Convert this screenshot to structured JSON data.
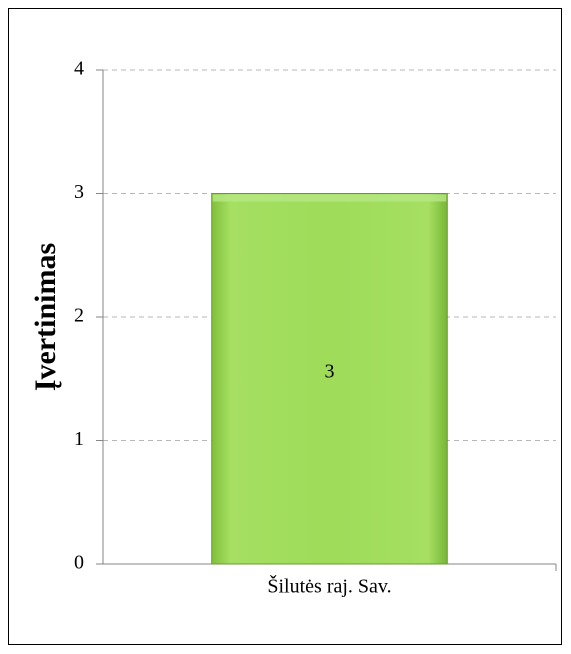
{
  "chart_data": {
    "type": "bar",
    "categories": [
      "Šilutės raj. Sav."
    ],
    "values": [
      3
    ],
    "data_labels": [
      "3"
    ],
    "ylabel": "Įvertinimas",
    "xlabel": "",
    "ylim": [
      0,
      4
    ],
    "yticks": [
      "0",
      "1",
      "2",
      "3",
      "4"
    ],
    "grid": true,
    "grid_style": "dashed",
    "legend": "none",
    "bar_color": "#92d050"
  }
}
